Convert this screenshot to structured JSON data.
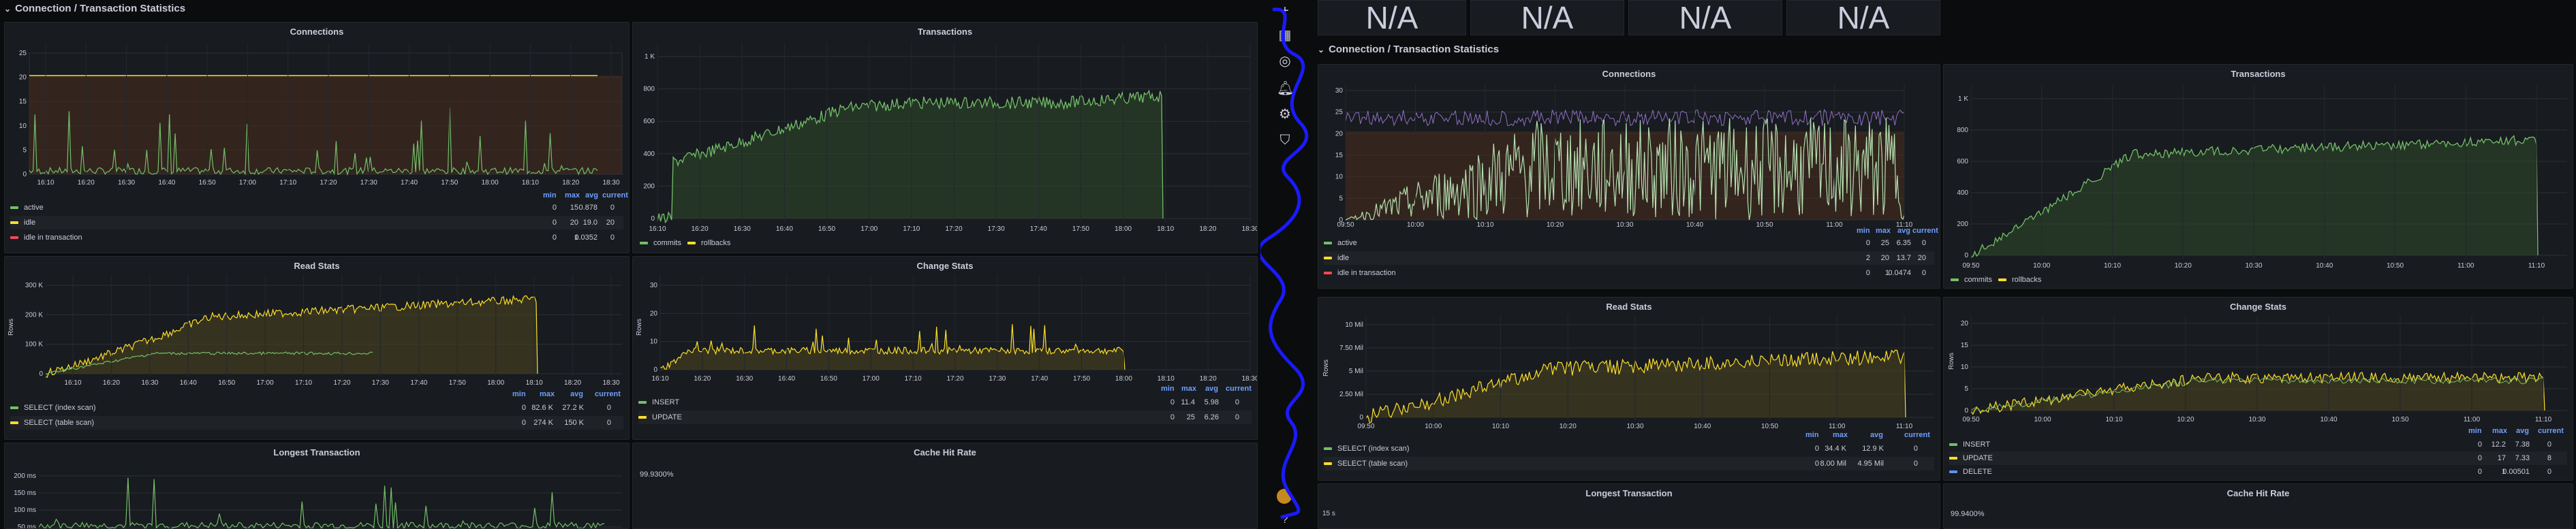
{
  "left": {
    "row_title": "Connection / Transaction Statistics",
    "connections": {
      "title": "Connections",
      "y_ticks": [
        "25",
        "20",
        "15",
        "10",
        "5",
        "0"
      ],
      "x_ticks": [
        "16:10",
        "16:20",
        "16:30",
        "16:40",
        "16:50",
        "17:00",
        "17:10",
        "17:20",
        "17:30",
        "17:40",
        "17:50",
        "18:00",
        "18:10",
        "18:20",
        "18:30"
      ],
      "legend_headers": [
        "min",
        "max",
        "avg",
        "current"
      ],
      "legend": [
        {
          "name": "active",
          "color": "#73bf69",
          "min": "0",
          "max": "15",
          "avg": "0.878",
          "current": "0"
        },
        {
          "name": "idle",
          "color": "#fade2a",
          "min": "0",
          "max": "20",
          "avg": "19.0",
          "current": "20"
        },
        {
          "name": "idle in transaction",
          "color": "#f2495c",
          "min": "0",
          "max": "1",
          "avg": "0.0352",
          "current": "0"
        }
      ]
    },
    "transactions": {
      "title": "Transactions",
      "y_ticks": [
        "1 K",
        "800",
        "600",
        "400",
        "200",
        "0"
      ],
      "x_ticks": [
        "16:10",
        "16:20",
        "16:30",
        "16:40",
        "16:50",
        "17:00",
        "17:10",
        "17:20",
        "17:30",
        "17:40",
        "17:50",
        "18:00",
        "18:10",
        "18:20",
        "18:30"
      ],
      "legend": [
        {
          "name": "commits",
          "color": "#73bf69"
        },
        {
          "name": "rollbacks",
          "color": "#fade2a"
        }
      ]
    },
    "read_stats": {
      "title": "Read Stats",
      "y_label": "Rows",
      "y_ticks": [
        "300 K",
        "200 K",
        "100 K",
        "0"
      ],
      "x_ticks": [
        "16:10",
        "16:20",
        "16:30",
        "16:40",
        "16:50",
        "17:00",
        "17:10",
        "17:20",
        "17:30",
        "17:40",
        "17:50",
        "18:00",
        "18:10",
        "18:20",
        "18:30"
      ],
      "legend_headers": [
        "min",
        "max",
        "avg",
        "current"
      ],
      "legend": [
        {
          "name": "SELECT (index scan)",
          "color": "#73bf69",
          "min": "0",
          "max": "82.6 K",
          "avg": "27.2 K",
          "current": "0"
        },
        {
          "name": "SELECT (table scan)",
          "color": "#fade2a",
          "min": "0",
          "max": "274 K",
          "avg": "150 K",
          "current": "0"
        }
      ]
    },
    "change_stats": {
      "title": "Change Stats",
      "y_label": "Rows",
      "y_ticks": [
        "30",
        "20",
        "10",
        "0"
      ],
      "x_ticks": [
        "16:10",
        "16:20",
        "16:30",
        "16:40",
        "16:50",
        "17:00",
        "17:10",
        "17:20",
        "17:30",
        "17:40",
        "17:50",
        "18:00",
        "18:10",
        "18:20",
        "18:30"
      ],
      "legend_headers": [
        "min",
        "max",
        "avg",
        "current"
      ],
      "legend": [
        {
          "name": "INSERT",
          "color": "#73bf69",
          "min": "0",
          "max": "11.4",
          "avg": "5.98",
          "current": "0"
        },
        {
          "name": "UPDATE",
          "color": "#fade2a",
          "min": "0",
          "max": "25",
          "avg": "6.26",
          "current": "0"
        }
      ]
    },
    "longest_transaction": {
      "title": "Longest Transaction",
      "y_ticks": [
        "200 ms",
        "150 ms",
        "100 ms",
        "50 ms"
      ]
    },
    "cache_hit_rate": {
      "title": "Cache Hit Rate",
      "value": "99.9300%"
    }
  },
  "right": {
    "stats": [
      "N/A",
      "N/A",
      "N/A",
      "N/A"
    ],
    "row_title": "Connection / Transaction Statistics",
    "connections": {
      "title": "Connections",
      "y_ticks": [
        "30",
        "25",
        "20",
        "15",
        "10",
        "5",
        "0"
      ],
      "x_ticks": [
        "09:50",
        "10:00",
        "10:10",
        "10:20",
        "10:30",
        "10:40",
        "10:50",
        "11:00",
        "11:10"
      ],
      "legend_headers": [
        "min",
        "max",
        "avg",
        "current"
      ],
      "legend": [
        {
          "name": "active",
          "color": "#73bf69",
          "min": "0",
          "max": "25",
          "avg": "6.35",
          "current": "0"
        },
        {
          "name": "idle",
          "color": "#fade2a",
          "min": "2",
          "max": "20",
          "avg": "13.7",
          "current": "20"
        },
        {
          "name": "idle in transaction",
          "color": "#f2495c",
          "min": "0",
          "max": "1",
          "avg": "0.0474",
          "current": "0"
        }
      ]
    },
    "transactions": {
      "title": "Transactions",
      "y_ticks": [
        "1 K",
        "800",
        "600",
        "400",
        "200",
        "0"
      ],
      "x_ticks": [
        "09:50",
        "10:00",
        "10:10",
        "10:20",
        "10:30",
        "10:40",
        "10:50",
        "11:00",
        "11:10"
      ],
      "legend": [
        {
          "name": "commits",
          "color": "#73bf69"
        },
        {
          "name": "rollbacks",
          "color": "#fade2a"
        }
      ]
    },
    "read_stats": {
      "title": "Read Stats",
      "y_label": "Rows",
      "y_ticks": [
        "10 Mil",
        "7.50 Mil",
        "5 Mil",
        "2.50 Mil",
        "0"
      ],
      "x_ticks": [
        "09:50",
        "10:00",
        "10:10",
        "10:20",
        "10:30",
        "10:40",
        "10:50",
        "11:00",
        "11:10"
      ],
      "legend_headers": [
        "min",
        "max",
        "avg",
        "current"
      ],
      "legend": [
        {
          "name": "SELECT (index scan)",
          "color": "#73bf69",
          "min": "0",
          "max": "34.4 K",
          "avg": "12.9 K",
          "current": "0"
        },
        {
          "name": "SELECT (table scan)",
          "color": "#fade2a",
          "min": "0",
          "max": "8.00 Mil",
          "avg": "4.95 Mil",
          "current": "0"
        }
      ]
    },
    "change_stats": {
      "title": "Change Stats",
      "y_label": "Rows",
      "y_ticks": [
        "20",
        "15",
        "10",
        "5",
        "0"
      ],
      "x_ticks": [
        "09:50",
        "10:00",
        "10:10",
        "10:20",
        "10:30",
        "10:40",
        "10:50",
        "11:00",
        "11:10"
      ],
      "legend_headers": [
        "min",
        "max",
        "avg",
        "current"
      ],
      "legend": [
        {
          "name": "INSERT",
          "color": "#73bf69",
          "min": "0",
          "max": "12.2",
          "avg": "7.38",
          "current": "0"
        },
        {
          "name": "UPDATE",
          "color": "#fade2a",
          "min": "0",
          "max": "17",
          "avg": "7.33",
          "current": "8"
        },
        {
          "name": "DELETE",
          "color": "#5794f2",
          "min": "0",
          "max": "1",
          "avg": "0.00501",
          "current": "0"
        }
      ]
    },
    "longest_transaction": {
      "title": "Longest Transaction",
      "y_ticks": [
        "15 s"
      ]
    },
    "cache_hit_rate": {
      "title": "Cache Hit Rate",
      "value": "99.9400%"
    }
  },
  "sidebar": {
    "icons": [
      "plus-icon",
      "dashboards-icon",
      "compass-icon",
      "bell-icon",
      "gear-icon",
      "shield-icon",
      "avatar",
      "help-icon"
    ]
  }
}
